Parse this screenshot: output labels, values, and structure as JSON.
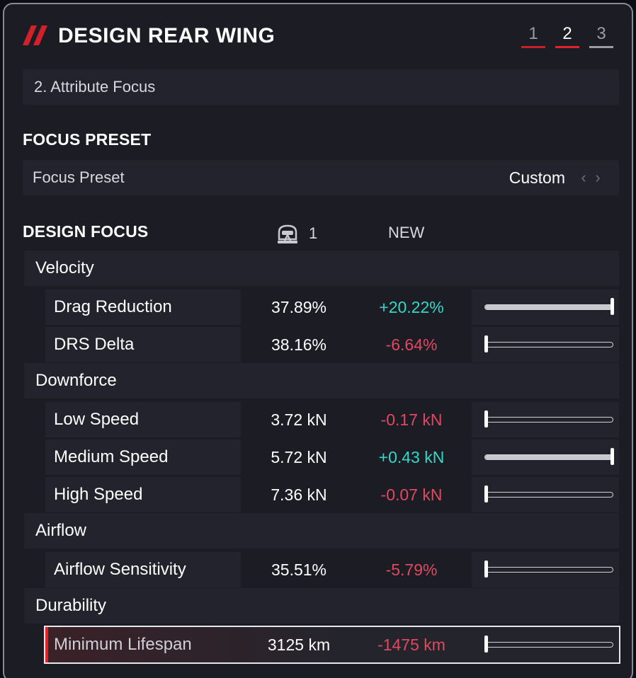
{
  "header": {
    "title": "DESIGN REAR WING",
    "steps": [
      {
        "label": "1",
        "state": "done"
      },
      {
        "label": "2",
        "state": "active"
      },
      {
        "label": "3",
        "state": "pending"
      }
    ]
  },
  "subbar": {
    "label": "2. Attribute Focus"
  },
  "focus_preset": {
    "section_title": "FOCUS PRESET",
    "row_label": "Focus Preset",
    "value": "Custom",
    "prev_icon": "chevron-left-icon",
    "next_icon": "chevron-right-icon"
  },
  "design_focus": {
    "section_title": "DESIGN FOCUS",
    "driver_col": "1",
    "driver_icon": "driver-helmet-icon",
    "new_col": "NEW"
  },
  "groups": [
    {
      "name": "Velocity",
      "attributes": [
        {
          "name": "Drag Reduction",
          "current": "37.89%",
          "new": "+20.22%",
          "trend": "pos",
          "level": 1.0
        },
        {
          "name": "DRS Delta",
          "current": "38.16%",
          "new": "-6.64%",
          "trend": "neg",
          "level": 0.0
        }
      ]
    },
    {
      "name": "Downforce",
      "attributes": [
        {
          "name": "Low Speed",
          "current": "3.72 kN",
          "new": "-0.17 kN",
          "trend": "neg",
          "level": 0.0
        },
        {
          "name": "Medium Speed",
          "current": "5.72 kN",
          "new": "+0.43 kN",
          "trend": "pos",
          "level": 1.0
        },
        {
          "name": "High Speed",
          "current": "7.36 kN",
          "new": "-0.07 kN",
          "trend": "neg",
          "level": 0.0
        }
      ]
    },
    {
      "name": "Airflow",
      "attributes": [
        {
          "name": "Airflow Sensitivity",
          "current": "35.51%",
          "new": "-5.79%",
          "trend": "neg",
          "level": 0.0
        }
      ]
    },
    {
      "name": "Durability",
      "attributes": [
        {
          "name": "Minimum Lifespan",
          "current": "3125 km",
          "new": "-1475 km",
          "trend": "neg",
          "level": 0.0,
          "selected": true
        }
      ]
    }
  ],
  "colors": {
    "accent": "#e0242e",
    "positive": "#34d8c8",
    "negative": "#e04a5e",
    "panel_bg": "#1b1c24",
    "row_bg": "#22232c"
  }
}
